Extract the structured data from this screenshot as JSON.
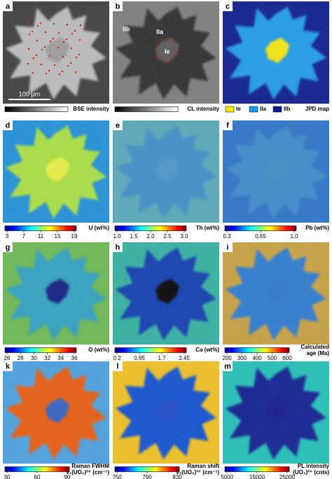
{
  "panels": [
    {
      "letter": "a",
      "caption": [
        "BSE intensity"
      ],
      "colormap": "gray",
      "scale_bar": "100 µm",
      "image": {
        "bg": "#3c3c3c",
        "blob": "#bcbcbc",
        "core": "#9c9c9c"
      }
    },
    {
      "letter": "b",
      "caption": [
        "CL intensity"
      ],
      "colormap": "gray",
      "labels": [
        "IIb",
        "IIa",
        "Ie"
      ],
      "image": {
        "bg": "#7c7c7c",
        "blob": "#2c2c2c",
        "core": "#565656"
      }
    },
    {
      "letter": "c",
      "caption": [
        "JPD map"
      ],
      "legend": [
        {
          "name": "Ie",
          "color": "#f5e80a"
        },
        {
          "name": "IIa",
          "color": "#1e9be8"
        },
        {
          "name": "IIb",
          "color": "#0a1a8a"
        }
      ],
      "image": {
        "bg": "#0a1a8a",
        "blob": "#1e9be8",
        "core": "#f5e80a"
      }
    },
    {
      "letter": "d",
      "caption": [
        "U (wt%)"
      ],
      "colormap": "jet",
      "ticks": [
        "3",
        "7",
        "11",
        "15",
        "19"
      ],
      "image": {
        "bg": "#1e8fd8",
        "blob": "#a8e040",
        "core": "#e8f040"
      }
    },
    {
      "letter": "e",
      "caption": [
        "Th (wt%)"
      ],
      "colormap": "jet",
      "ticks": [
        "1.0",
        "1.5",
        "2.0",
        "2.5",
        "3.0"
      ],
      "image": {
        "bg": "#55a8b8",
        "blob": "#3c8ec8",
        "core": "#4a96c8"
      }
    },
    {
      "letter": "f",
      "caption": [
        "Pb (wt%)"
      ],
      "colormap": "jet",
      "ticks": [
        "0.3",
        "0.65",
        "1.0"
      ],
      "image": {
        "bg": "#2a72c8",
        "blob": "#3a8ac8",
        "core": "#3c8ec4"
      }
    },
    {
      "letter": "g",
      "caption": [
        "O (wt%)"
      ],
      "colormap": "jet",
      "ticks": [
        "26",
        "28",
        "30",
        "32",
        "34",
        "36"
      ],
      "image": {
        "bg": "#6ab850",
        "blob": "#2ea0c0",
        "core": "#101a80"
      }
    },
    {
      "letter": "h",
      "caption": [
        "Ca (wt%)"
      ],
      "colormap": "jet",
      "ticks": [
        "0.2",
        "0.95",
        "1.7",
        "2.45"
      ],
      "image": {
        "bg": "#30b0a0",
        "blob": "#0a3ab0",
        "core": "#000000"
      }
    },
    {
      "letter": "i",
      "caption": [
        "Calculated",
        "age (Ma)"
      ],
      "colormap": "jet",
      "ticks": [
        "200",
        "300",
        "400",
        "500",
        "600"
      ],
      "image": {
        "bg": "#c8a040",
        "blob": "#2a7ad0",
        "core": "#2a76cc"
      }
    },
    {
      "letter": "k",
      "caption": [
        "Raman FWHM",
        "ν₁(UO₂)²⁺ (cm⁻¹)"
      ],
      "colormap": "jet",
      "ticks": [
        "30",
        "60",
        "90"
      ],
      "image": {
        "bg": "#4aa0e0",
        "blob": "#e85a10",
        "core": "#3060c0"
      }
    },
    {
      "letter": "l",
      "caption": [
        "Raman shift",
        "ν₁(UO₂)²⁺ (cm⁻¹)"
      ],
      "colormap": "jet",
      "ticks": [
        "750",
        "790",
        "830"
      ],
      "image": {
        "bg": "#f0c020",
        "blob": "#1050d0",
        "core": "#1a48c8"
      }
    },
    {
      "letter": "m",
      "caption": [
        "PL intensity",
        "(UO₂)²⁺ (cnts)"
      ],
      "colormap": "jet",
      "ticks": [
        "5000",
        "15000",
        "25000"
      ],
      "image": {
        "bg": "#20c0b8",
        "blob": "#0a1a90",
        "core": "#0a1488"
      }
    }
  ]
}
